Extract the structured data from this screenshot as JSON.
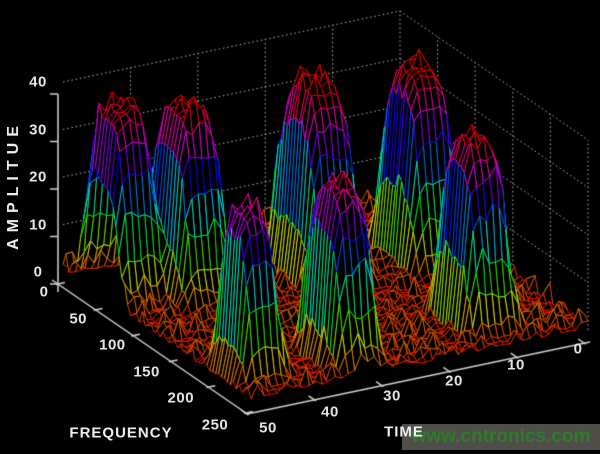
{
  "figure": {
    "background": "#000000"
  },
  "chart_data": {
    "type": "3d-mesh-surface",
    "title": "",
    "xlabel": "TIME",
    "ylabel": "FREQUENCY",
    "zlabel": "AMPLITUE",
    "x_axis": {
      "label": "TIME",
      "range": [
        0,
        50
      ],
      "ticks": [
        0,
        10,
        20,
        30,
        40,
        50
      ]
    },
    "y_axis": {
      "label": "FREQUENCY",
      "range": [
        0,
        250
      ],
      "ticks": [
        0,
        50,
        100,
        150,
        200,
        250
      ]
    },
    "z_axis": {
      "label": "AMPLITUE",
      "range": [
        0,
        40
      ],
      "ticks": [
        0,
        10,
        20,
        30,
        40
      ]
    },
    "colormap": "hsv",
    "caxis": [
      0,
      40
    ],
    "grid_style": "dotted",
    "mesh": {
      "line_color_by": "height",
      "face_color": "#000000",
      "frequency_cells": 64,
      "time_cells": 52
    },
    "noise_floor_amplitude": 1.5,
    "peaks": [
      {
        "frequency": 50,
        "time": 47,
        "amplitude": 38,
        "freq_halfwidth": 26,
        "time_halfwidth": 3.4
      },
      {
        "frequency": 70,
        "time": 39.5,
        "amplitude": 38.5,
        "freq_halfwidth": 28,
        "time_halfwidth": 3.6
      },
      {
        "frequency": 85,
        "time": 22,
        "amplitude": 40,
        "freq_halfwidth": 30,
        "time_halfwidth": 3.8
      },
      {
        "frequency": 95,
        "time": 8,
        "amplitude": 40,
        "freq_halfwidth": 28,
        "time_halfwidth": 3.6
      },
      {
        "frequency": 210,
        "time": 46,
        "amplitude": 33.5,
        "freq_halfwidth": 22,
        "time_halfwidth": 2.8
      },
      {
        "frequency": 215,
        "time": 33,
        "amplitude": 36,
        "freq_halfwidth": 26,
        "time_halfwidth": 3.2
      },
      {
        "frequency": 205,
        "time": 12,
        "amplitude": 38,
        "freq_halfwidth": 26,
        "time_halfwidth": 3.4
      }
    ]
  },
  "watermark": {
    "text": "www.cntronics.com",
    "text_color": "#2e7d2e",
    "background": "#504e49"
  }
}
